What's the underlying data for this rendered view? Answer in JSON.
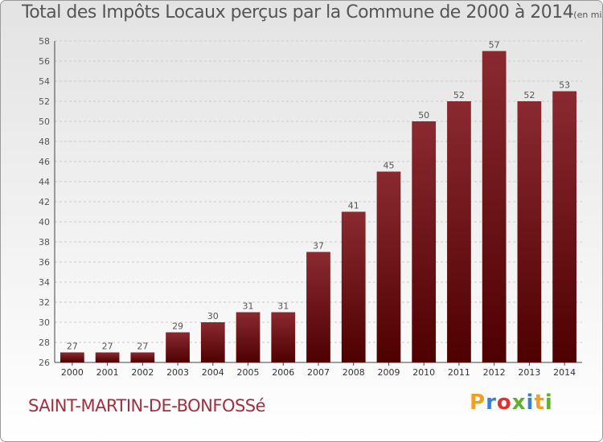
{
  "commune": "SAINT-MARTIN-DE-BONFOSSé",
  "brand": {
    "letters": [
      "P",
      "r",
      "o",
      "x",
      "i",
      "t",
      "i"
    ],
    "colors": [
      "#f0a020",
      "#3a7fd0",
      "#e03030",
      "#60b030",
      "#3a7fd0",
      "#f0a020",
      "#60b030"
    ]
  },
  "colors": {
    "bar_top": "#8a2a30",
    "bar_bottom": "#4e0000",
    "grid": "#cccccc",
    "axis": "#444444",
    "label": "#555555"
  },
  "chart_data": {
    "type": "bar",
    "title": "Total des Impôts Locaux perçus par la Commune de 2000 à 2014",
    "subtitle": "(en milliers d'€)",
    "xlabel": "",
    "ylabel": "",
    "categories": [
      "2000",
      "2001",
      "2002",
      "2003",
      "2004",
      "2005",
      "2006",
      "2007",
      "2008",
      "2009",
      "2010",
      "2011",
      "2012",
      "2013",
      "2014"
    ],
    "values": [
      27,
      27,
      27,
      29,
      30,
      31,
      31,
      37,
      41,
      45,
      50,
      52,
      57,
      52,
      53
    ],
    "ylim": [
      26,
      58
    ],
    "yticks": [
      26,
      28,
      30,
      32,
      34,
      36,
      38,
      40,
      42,
      44,
      46,
      48,
      50,
      52,
      54,
      56,
      58
    ],
    "grid": true,
    "legend": "none"
  }
}
